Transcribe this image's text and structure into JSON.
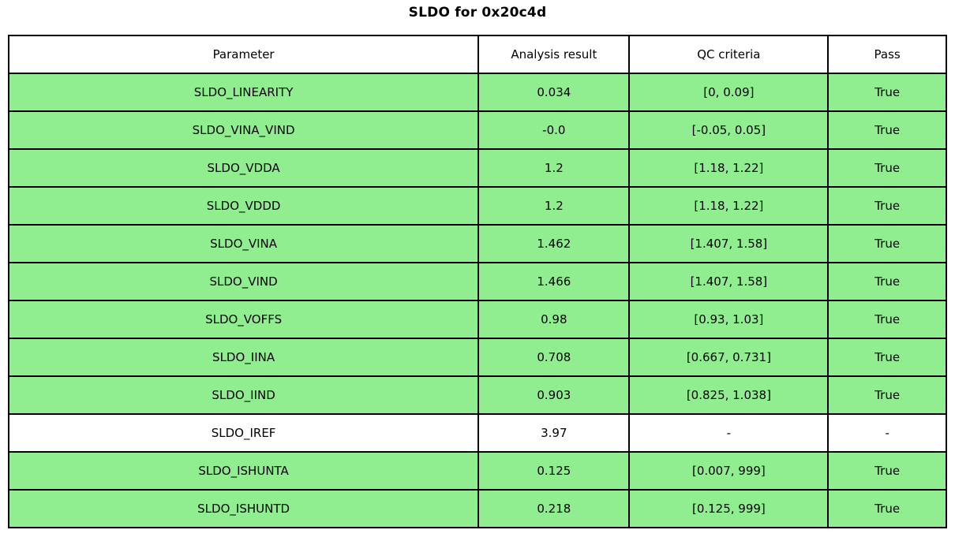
{
  "chart_data": {
    "type": "table",
    "title": "SLDO for 0x20c4d",
    "columns": [
      "Parameter",
      "Analysis result",
      "QC criteria",
      "Pass"
    ],
    "rows": [
      {
        "parameter": "SLDO_LINEARITY",
        "result": "0.034",
        "criteria": "[0, 0.09]",
        "pass": "True"
      },
      {
        "parameter": "SLDO_VINA_VIND",
        "result": "-0.0",
        "criteria": "[-0.05, 0.05]",
        "pass": "True"
      },
      {
        "parameter": "SLDO_VDDA",
        "result": "1.2",
        "criteria": "[1.18, 1.22]",
        "pass": "True"
      },
      {
        "parameter": "SLDO_VDDD",
        "result": "1.2",
        "criteria": "[1.18, 1.22]",
        "pass": "True"
      },
      {
        "parameter": "SLDO_VINA",
        "result": "1.462",
        "criteria": "[1.407, 1.58]",
        "pass": "True"
      },
      {
        "parameter": "SLDO_VIND",
        "result": "1.466",
        "criteria": "[1.407, 1.58]",
        "pass": "True"
      },
      {
        "parameter": "SLDO_VOFFS",
        "result": "0.98",
        "criteria": "[0.93, 1.03]",
        "pass": "True"
      },
      {
        "parameter": "SLDO_IINA",
        "result": "0.708",
        "criteria": "[0.667, 0.731]",
        "pass": "True"
      },
      {
        "parameter": "SLDO_IIND",
        "result": "0.903",
        "criteria": "[0.825, 1.038]",
        "pass": "True"
      },
      {
        "parameter": "SLDO_IREF",
        "result": "3.97",
        "criteria": "-",
        "pass": "-"
      },
      {
        "parameter": "SLDO_ISHUNTA",
        "result": "0.125",
        "criteria": "[0.007, 999]",
        "pass": "True"
      },
      {
        "parameter": "SLDO_ISHUNTD",
        "result": "0.218",
        "criteria": "[0.125, 999]",
        "pass": "True"
      }
    ],
    "layout_hints": {
      "pass_row_color": "#90EE90",
      "neutral_row_color": "#FFFFFF",
      "border_color": "#000000",
      "title_position": "top-center"
    }
  }
}
